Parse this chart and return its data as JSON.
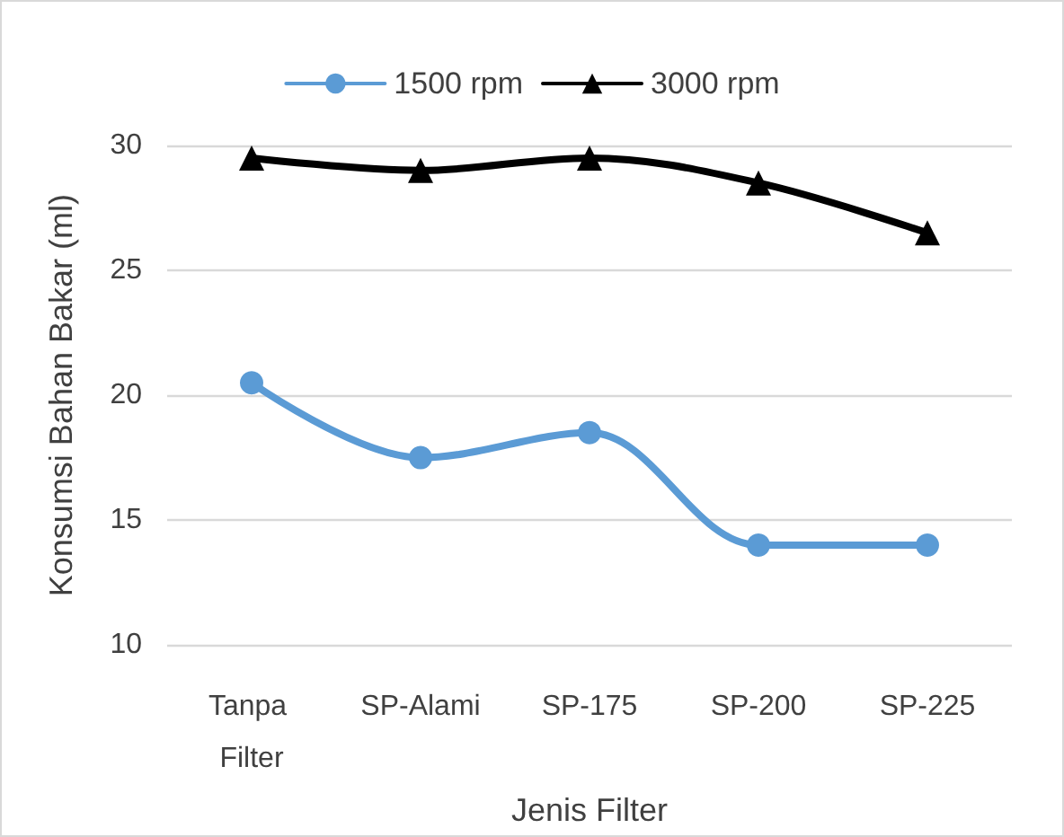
{
  "chart_data": {
    "type": "line",
    "xlabel": "Jenis Filter",
    "ylabel": "Konsumsi Bahan Bakar (ml)",
    "categories": [
      "Tanpa Filter",
      "SP-Alami",
      "SP-175",
      "SP-200",
      "SP-225"
    ],
    "series": [
      {
        "name": "1500 rpm",
        "color": "#5b9bd5",
        "marker": "circle",
        "values": [
          20.5,
          17.5,
          18.5,
          14,
          14
        ]
      },
      {
        "name": "3000 rpm",
        "color": "#000000",
        "marker": "triangle",
        "values": [
          29.5,
          29,
          29.5,
          28.5,
          26.5
        ]
      }
    ],
    "ylim": [
      10,
      30
    ],
    "yticks": [
      10,
      15,
      20,
      25,
      30
    ],
    "grid": "y",
    "legend": "top",
    "line_style": "solid"
  }
}
